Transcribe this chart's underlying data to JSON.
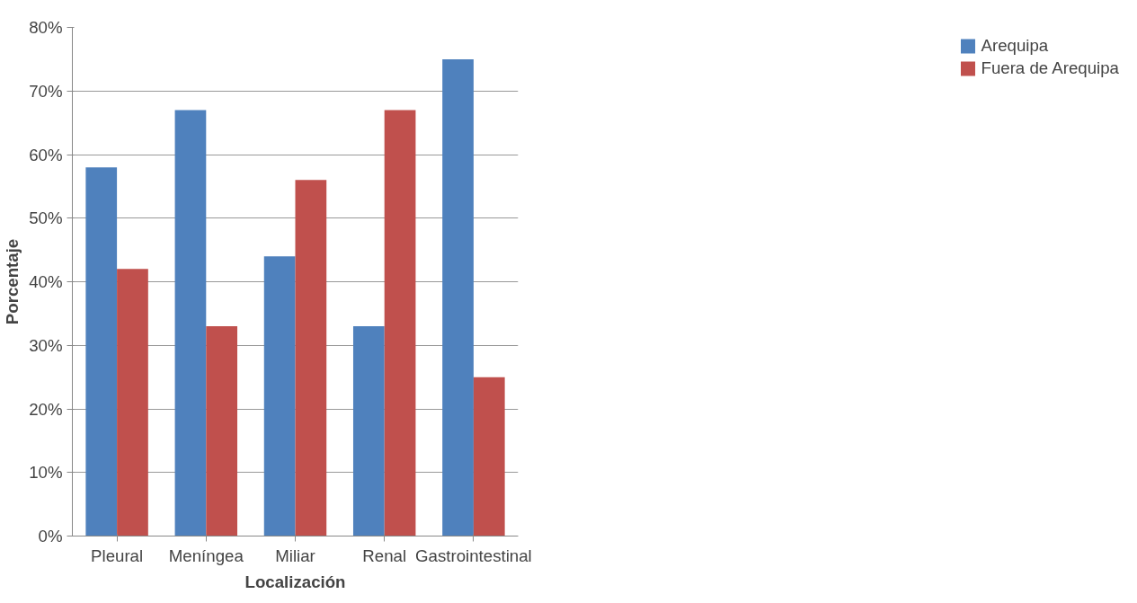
{
  "chart_data": {
    "type": "bar",
    "xlabel": "Localización",
    "ylabel": "Porcentaje",
    "categories": [
      "Pleural",
      "Meníngea",
      "Miliar",
      "Renal",
      "Gastrointestinal"
    ],
    "series": [
      {
        "name": "Arequipa",
        "color": "#4f81bd",
        "values": [
          58,
          67,
          44,
          33,
          75
        ]
      },
      {
        "name": "Fuera de Arequipa",
        "color": "#c0504d",
        "values": [
          42,
          33,
          56,
          67,
          25
        ]
      }
    ],
    "ylim": [
      0,
      80
    ],
    "yticks": [
      {
        "value": 0,
        "label": "0%"
      },
      {
        "value": 10,
        "label": "10%"
      },
      {
        "value": 20,
        "label": "20%"
      },
      {
        "value": 30,
        "label": "30%"
      },
      {
        "value": 40,
        "label": "40%"
      },
      {
        "value": 50,
        "label": "50%"
      },
      {
        "value": 60,
        "label": "60%"
      },
      {
        "value": 70,
        "label": "70%"
      },
      {
        "value": 80,
        "label": "80%"
      }
    ],
    "grid": "y",
    "legend": "right"
  }
}
